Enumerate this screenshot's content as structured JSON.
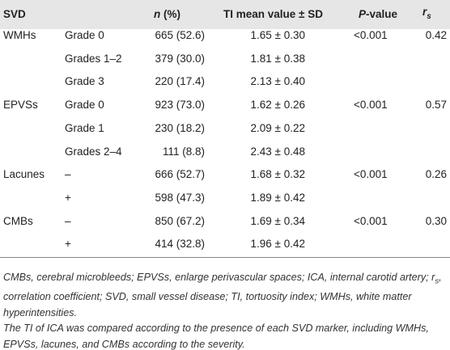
{
  "table": {
    "header": {
      "svd": "SVD",
      "n": {
        "italic": "n",
        "text": " (%)"
      },
      "ti": "TI mean value ± SD",
      "p": {
        "italic": "P",
        "text": "-value"
      },
      "rs": {
        "main": "r",
        "sub": "s"
      }
    },
    "groups": [
      {
        "marker": "WMHs",
        "p": "<0.001",
        "rs": "0.42",
        "rows": [
          {
            "grade": "Grade 0",
            "n": "665 (52.6)",
            "ti": "1.65 ± 0.30"
          },
          {
            "grade": "Grades 1–2",
            "n": "379 (30.0)",
            "ti": "1.81 ± 0.38"
          },
          {
            "grade": "Grade 3",
            "n": "220 (17.4)",
            "ti": "2.13 ± 0.40"
          }
        ]
      },
      {
        "marker": "EPVSs",
        "p": "<0.001",
        "rs": "0.57",
        "rows": [
          {
            "grade": "Grade 0",
            "n": "923 (73.0)",
            "ti": "1.62 ± 0.26"
          },
          {
            "grade": "Grade 1",
            "n": "230 (18.2)",
            "ti": "2.09 ± 0.22"
          },
          {
            "grade": "Grades 2–4",
            "n": "111 (8.8)",
            "ti": "2.43 ± 0.48"
          }
        ]
      },
      {
        "marker": "Lacunes",
        "p": "<0.001",
        "rs": "0.26",
        "rows": [
          {
            "grade": "–",
            "n": "666 (52.7)",
            "ti": "1.68 ± 0.32"
          },
          {
            "grade": "+",
            "n": "598 (47.3)",
            "ti": "1.89 ± 0.42"
          }
        ]
      },
      {
        "marker": "CMBs",
        "p": "<0.001",
        "rs": "0.30",
        "rows": [
          {
            "grade": "–",
            "n": "850 (67.2)",
            "ti": "1.69 ± 0.34"
          },
          {
            "grade": "+",
            "n": "414 (32.8)",
            "ti": "1.96 ± 0.42"
          }
        ]
      }
    ]
  },
  "notes": {
    "abbreviations": {
      "before": "CMBs, cerebral microbleeds; EPVSs, enlarge perivascular spaces; ICA, internal carotid artery; r",
      "sub": "s",
      "after": ", correlation coefficient; SVD, small vessel disease; TI, tortuosity index; WMHs, white matter hyperintensities."
    },
    "description": "The TI of ICA was compared according to the presence of each SVD marker, including WMHs, EPVSs, lacunes, and CMBs according to the severity."
  }
}
